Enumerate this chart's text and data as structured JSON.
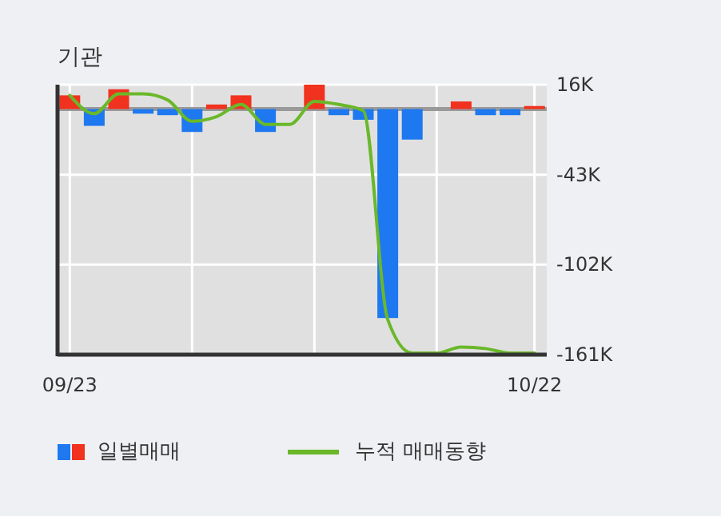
{
  "chart_data": {
    "type": "bar",
    "title": "기관",
    "categories": [
      "09/23",
      null,
      null,
      null,
      null,
      null,
      null,
      null,
      null,
      null,
      null,
      null,
      null,
      null,
      null,
      null,
      null,
      null,
      null,
      "10/22"
    ],
    "series": [
      {
        "name": "일별매매",
        "color": "#1e78f0",
        "colors": [
          "#f0321e",
          "#1e78f0",
          "#f0321e",
          "#1e78f0",
          "#1e78f0",
          "#1e78f0",
          "#f0321e",
          "#f0321e",
          "#1e78f0",
          "#1e78f0",
          "#f0321e",
          "#1e78f0",
          "#1e78f0",
          "#1e78f0",
          "#1e78f0",
          "#f0321e",
          "#f0321e",
          "#1e78f0",
          "#1e78f0",
          "#f0321e"
        ],
        "values": [
          9,
          -11,
          13,
          -3,
          -4,
          -15,
          3,
          9,
          -15,
          0,
          16,
          -4,
          -7,
          -137,
          -20,
          0,
          5,
          -4,
          -4,
          2
        ]
      },
      {
        "type": "line",
        "name": "누적 매매동향",
        "color": "#6ab82a",
        "values": [
          9,
          -3,
          10,
          10,
          6,
          -8,
          -5,
          3,
          -10,
          -10,
          5,
          3,
          -1,
          -138,
          -160,
          -160,
          -156,
          -157,
          -160,
          -160
        ]
      }
    ],
    "ylim": [
      -161,
      16
    ],
    "yticks": [
      {
        "value": 16,
        "label": "16K"
      },
      {
        "value": -43,
        "label": "-43K"
      },
      {
        "value": -102,
        "label": "-102K"
      },
      {
        "value": -161,
        "label": "-161K"
      }
    ],
    "grid": true,
    "legend": "bottom"
  }
}
